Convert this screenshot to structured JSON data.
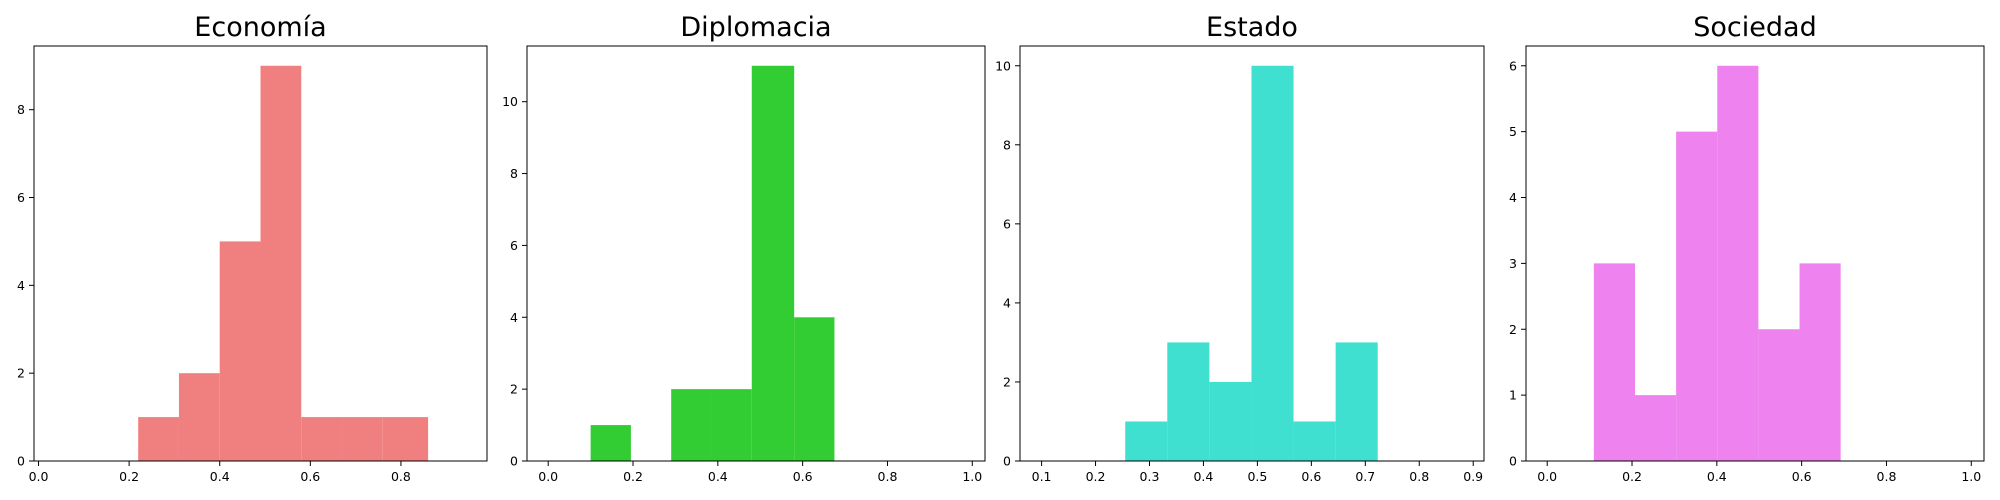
{
  "chart_data": [
    {
      "type": "histogram",
      "title": "Economía",
      "color": "#F08080",
      "xlim": [
        -0.01,
        0.99
      ],
      "ylim": [
        0,
        9.45
      ],
      "xticks": [
        0.0,
        0.2,
        0.4,
        0.6,
        0.8
      ],
      "xtick_labels": [
        "0.0",
        "0.2",
        "0.4",
        "0.6",
        "0.8"
      ],
      "yticks": [
        0,
        2,
        4,
        6,
        8
      ],
      "ytick_labels": [
        "0",
        "2",
        "4",
        "6",
        "8"
      ],
      "bins": [
        {
          "x0": 0.22,
          "x1": 0.31,
          "count": 1
        },
        {
          "x0": 0.31,
          "x1": 0.4,
          "count": 2
        },
        {
          "x0": 0.4,
          "x1": 0.49,
          "count": 5
        },
        {
          "x0": 0.49,
          "x1": 0.58,
          "count": 9
        },
        {
          "x0": 0.58,
          "x1": 0.67,
          "count": 1
        },
        {
          "x0": 0.67,
          "x1": 0.76,
          "count": 1
        },
        {
          "x0": 0.76,
          "x1": 0.86,
          "count": 1
        }
      ]
    },
    {
      "type": "histogram",
      "title": "Diplomacia",
      "color": "#32CD32",
      "xlim": [
        -0.05,
        1.03
      ],
      "ylim": [
        0,
        11.55
      ],
      "xticks": [
        0.0,
        0.2,
        0.4,
        0.6,
        0.8,
        1.0
      ],
      "xtick_labels": [
        "0.0",
        "0.2",
        "0.4",
        "0.6",
        "0.8",
        "1.0"
      ],
      "yticks": [
        0,
        2,
        4,
        6,
        8,
        10
      ],
      "ytick_labels": [
        "0",
        "2",
        "4",
        "6",
        "8",
        "10"
      ],
      "bins": [
        {
          "x0": 0.1,
          "x1": 0.195,
          "count": 1
        },
        {
          "x0": 0.29,
          "x1": 0.385,
          "count": 2
        },
        {
          "x0": 0.385,
          "x1": 0.48,
          "count": 2
        },
        {
          "x0": 0.48,
          "x1": 0.58,
          "count": 11
        },
        {
          "x0": 0.58,
          "x1": 0.675,
          "count": 4
        }
      ]
    },
    {
      "type": "histogram",
      "title": "Estado",
      "color": "#40E0D0",
      "xlim": [
        0.06,
        0.92
      ],
      "ylim": [
        0,
        10.5
      ],
      "xticks": [
        0.1,
        0.2,
        0.3,
        0.4,
        0.5,
        0.6,
        0.7,
        0.8,
        0.9
      ],
      "xtick_labels": [
        "0.1",
        "0.2",
        "0.3",
        "0.4",
        "0.5",
        "0.6",
        "0.7",
        "0.8",
        "0.9"
      ],
      "yticks": [
        0,
        2,
        4,
        6,
        8,
        10
      ],
      "ytick_labels": [
        "0",
        "2",
        "4",
        "6",
        "8",
        "10"
      ],
      "bins": [
        {
          "x0": 0.255,
          "x1": 0.333,
          "count": 1
        },
        {
          "x0": 0.333,
          "x1": 0.411,
          "count": 3
        },
        {
          "x0": 0.411,
          "x1": 0.489,
          "count": 2
        },
        {
          "x0": 0.489,
          "x1": 0.567,
          "count": 10
        },
        {
          "x0": 0.567,
          "x1": 0.645,
          "count": 1
        },
        {
          "x0": 0.645,
          "x1": 0.723,
          "count": 3
        }
      ]
    },
    {
      "type": "histogram",
      "title": "Sociedad",
      "color": "#EE82EE",
      "xlim": [
        -0.05,
        1.03
      ],
      "ylim": [
        0,
        6.3
      ],
      "xticks": [
        0.0,
        0.2,
        0.4,
        0.6,
        0.8,
        1.0
      ],
      "xtick_labels": [
        "0.0",
        "0.2",
        "0.4",
        "0.6",
        "0.8",
        "1.0"
      ],
      "yticks": [
        0,
        1,
        2,
        3,
        4,
        5,
        6
      ],
      "ytick_labels": [
        "0",
        "1",
        "2",
        "3",
        "4",
        "5",
        "6"
      ],
      "bins": [
        {
          "x0": 0.11,
          "x1": 0.207,
          "count": 3
        },
        {
          "x0": 0.207,
          "x1": 0.304,
          "count": 1
        },
        {
          "x0": 0.304,
          "x1": 0.401,
          "count": 5
        },
        {
          "x0": 0.401,
          "x1": 0.498,
          "count": 6
        },
        {
          "x0": 0.498,
          "x1": 0.595,
          "count": 2
        },
        {
          "x0": 0.595,
          "x1": 0.692,
          "count": 3
        }
      ]
    }
  ]
}
